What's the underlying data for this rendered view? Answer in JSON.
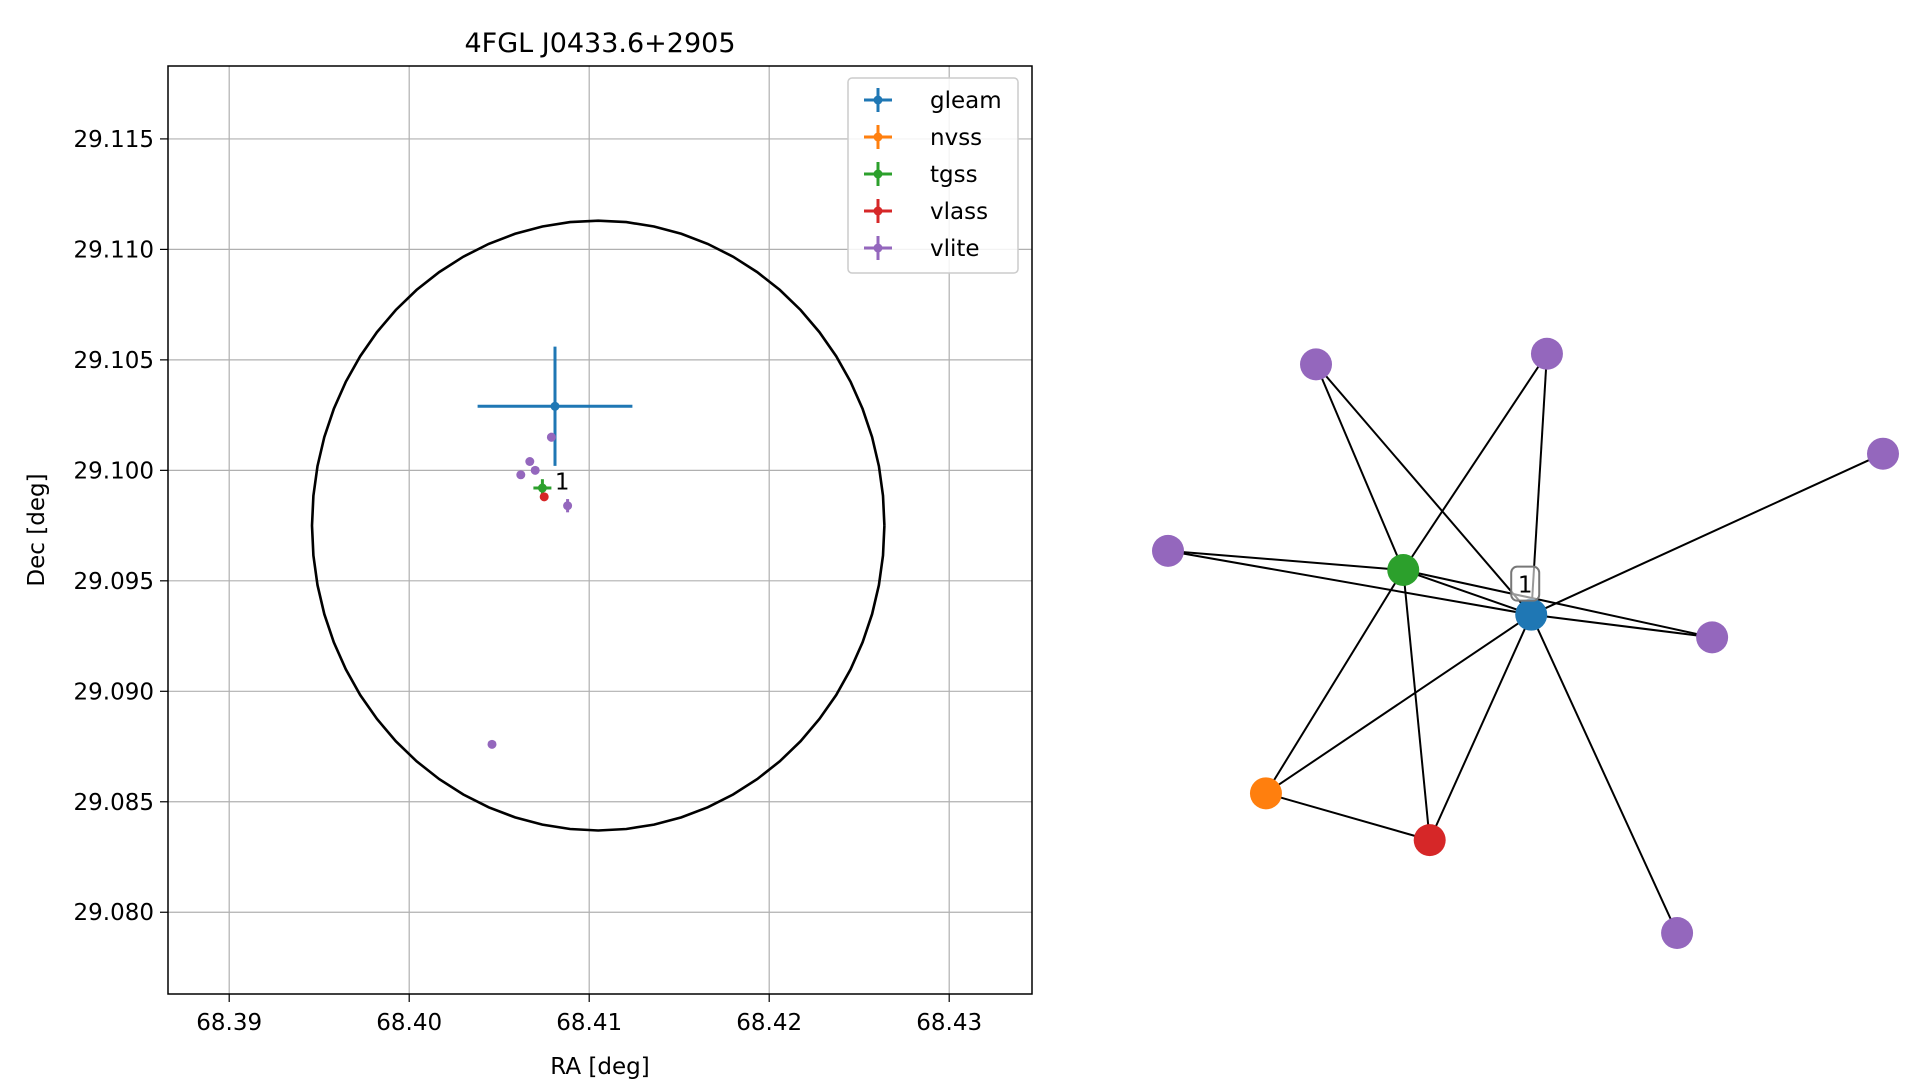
{
  "chart_data": [
    {
      "type": "scatter",
      "title": "4FGL J0433.6+2905",
      "xlabel": "RA [deg]",
      "ylabel": "Dec [deg]",
      "xlim": [
        68.3866,
        68.4346
      ],
      "ylim": [
        29.0763,
        29.1183
      ],
      "grid": true,
      "legend_position": "top-right",
      "xticks": [
        68.39,
        68.4,
        68.41,
        68.42,
        68.43
      ],
      "xtick_labels": [
        "68.39",
        "68.40",
        "68.41",
        "68.42",
        "68.43"
      ],
      "yticks": [
        29.08,
        29.085,
        29.09,
        29.095,
        29.1,
        29.105,
        29.11,
        29.115
      ],
      "ytick_labels": [
        "29.080",
        "29.085",
        "29.090",
        "29.095",
        "29.100",
        "29.105",
        "29.110",
        "29.115"
      ],
      "circle": {
        "ra": 68.4105,
        "dec": 29.0975,
        "ra_radius": 0.0159,
        "dec_radius": 0.0138,
        "color": "#000000"
      },
      "series": [
        {
          "name": "gleam",
          "color": "#1f77b4",
          "points": [
            {
              "x": 68.4081,
              "y": 29.1029,
              "xerr": 0.0043,
              "yerr": 0.0027
            }
          ]
        },
        {
          "name": "nvss",
          "color": "#ff7f0e",
          "points": []
        },
        {
          "name": "tgss",
          "color": "#2ca02c",
          "points": [
            {
              "x": 68.4074,
              "y": 29.0992,
              "xerr": 0.0005,
              "yerr": 0.0004
            }
          ]
        },
        {
          "name": "vlass",
          "color": "#d62728",
          "points": [
            {
              "x": 68.4075,
              "y": 29.0988,
              "xerr": 0.0001,
              "yerr": 0.0001
            }
          ]
        },
        {
          "name": "vlite",
          "color": "#9467bd",
          "points": [
            {
              "x": 68.4079,
              "y": 29.1015,
              "xerr": 0.0001,
              "yerr": 0.0002
            },
            {
              "x": 68.4067,
              "y": 29.1004,
              "xerr": 0.0001,
              "yerr": 0.0001
            },
            {
              "x": 68.407,
              "y": 29.1,
              "xerr": 0.0001,
              "yerr": 0.0001
            },
            {
              "x": 68.4062,
              "y": 29.0998,
              "xerr": 0.0001,
              "yerr": 0.0001
            },
            {
              "x": 68.4088,
              "y": 29.0984,
              "xerr": 0.0001,
              "yerr": 0.0003
            },
            {
              "x": 68.4046,
              "y": 29.0876,
              "xerr": 0.0002,
              "yerr": 0.0001
            }
          ]
        }
      ],
      "annotations": [
        {
          "text": "1",
          "x": 68.4085,
          "y": 29.0995
        }
      ]
    },
    {
      "type": "network",
      "node_label": "1",
      "nodes": [
        {
          "id": "gleam",
          "color": "#1f77b4",
          "x": 0.508,
          "y": 0.551
        },
        {
          "id": "tgss",
          "color": "#2ca02c",
          "x": 0.329,
          "y": 0.488
        },
        {
          "id": "nvss",
          "color": "#ff7f0e",
          "x": 0.137,
          "y": 0.803
        },
        {
          "id": "vlass",
          "color": "#d62728",
          "x": 0.366,
          "y": 0.869
        },
        {
          "id": "vlite1",
          "color": "#9467bd",
          "x": 0.0,
          "y": 0.461
        },
        {
          "id": "vlite2",
          "color": "#9467bd",
          "x": 0.207,
          "y": 0.198
        },
        {
          "id": "vlite3",
          "color": "#9467bd",
          "x": 0.53,
          "y": 0.183
        },
        {
          "id": "vlite4",
          "color": "#9467bd",
          "x": 1.0,
          "y": 0.324
        },
        {
          "id": "vlite5",
          "color": "#9467bd",
          "x": 0.761,
          "y": 0.583
        },
        {
          "id": "vlite6",
          "color": "#9467bd",
          "x": 0.712,
          "y": 1.0
        }
      ],
      "edges": [
        [
          "gleam",
          "tgss"
        ],
        [
          "gleam",
          "nvss"
        ],
        [
          "gleam",
          "vlass"
        ],
        [
          "gleam",
          "vlite1"
        ],
        [
          "gleam",
          "vlite2"
        ],
        [
          "gleam",
          "vlite3"
        ],
        [
          "gleam",
          "vlite4"
        ],
        [
          "gleam",
          "vlite5"
        ],
        [
          "gleam",
          "vlite6"
        ],
        [
          "tgss",
          "nvss"
        ],
        [
          "tgss",
          "vlass"
        ],
        [
          "tgss",
          "vlite1"
        ],
        [
          "tgss",
          "vlite2"
        ],
        [
          "tgss",
          "vlite3"
        ],
        [
          "tgss",
          "vlite5"
        ],
        [
          "nvss",
          "vlass"
        ]
      ]
    }
  ]
}
